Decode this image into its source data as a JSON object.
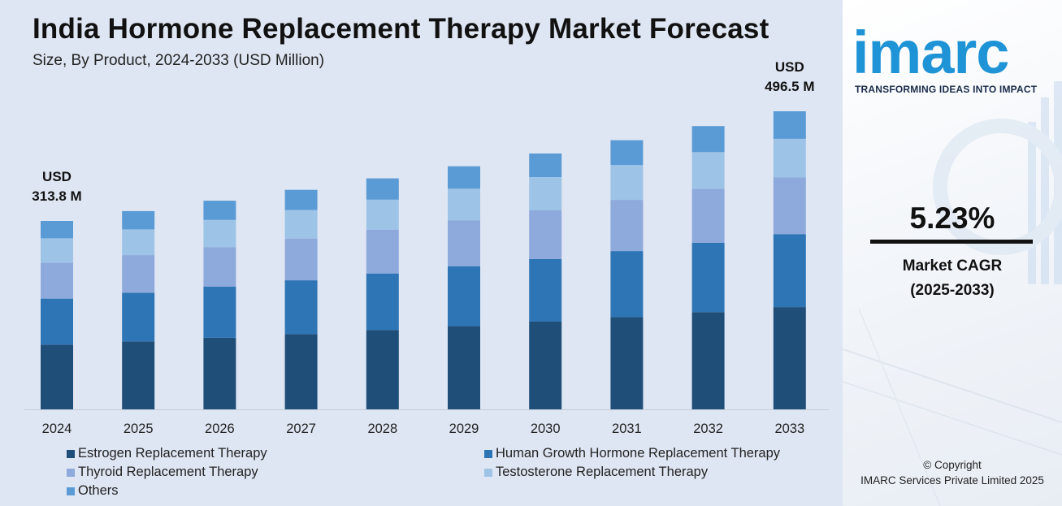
{
  "colors": {
    "estrogen": "#1f4e79",
    "human_growth": "#2e75b6",
    "thyroid": "#8ea9db",
    "testosterone": "#9dc3e6",
    "others": "#5b9bd5",
    "panel_bg": "#dfe6f3",
    "brand": "#1e93d6"
  },
  "chart_data": {
    "type": "bar",
    "stacked": true,
    "title": "India Hormone Replacement Therapy Market Forecast",
    "subtitle": "Size, By Product, 2024-2033 (USD Million)",
    "categories": [
      "2024",
      "2025",
      "2026",
      "2027",
      "2028",
      "2029",
      "2030",
      "2031",
      "2032",
      "2033"
    ],
    "totals": [
      313.8,
      330.2,
      347.5,
      365.7,
      384.8,
      404.9,
      426.1,
      448.4,
      471.9,
      496.5
    ],
    "series": [
      {
        "name": "Estrogen Replacement Therapy",
        "color_key": "estrogen",
        "values": [
          107.6,
          113.3,
          119.2,
          125.4,
          132.0,
          138.9,
          146.1,
          153.8,
          161.9,
          170.3
        ]
      },
      {
        "name": "Human Growth Hormone Replacement Therapy",
        "color_key": "human_growth",
        "values": [
          76.9,
          80.9,
          85.1,
          89.6,
          94.3,
          99.2,
          104.4,
          109.9,
          115.6,
          121.6
        ]
      },
      {
        "name": "Thyroid Replacement Therapy",
        "color_key": "thyroid",
        "values": [
          59.6,
          62.7,
          66.0,
          69.5,
          73.1,
          76.9,
          81.0,
          85.2,
          89.7,
          94.3
        ]
      },
      {
        "name": "Testosterone Replacement Therapy",
        "color_key": "testosterone",
        "values": [
          40.8,
          42.9,
          45.2,
          47.5,
          50.0,
          52.6,
          55.4,
          58.3,
          61.3,
          64.5
        ]
      },
      {
        "name": "Others",
        "color_key": "others",
        "values": [
          28.9,
          30.4,
          32.0,
          33.7,
          35.4,
          37.3,
          39.2,
          41.2,
          43.4,
          45.8
        ]
      }
    ],
    "annotations": [
      {
        "category": "2024",
        "line1": "USD",
        "line2": "313.8 M"
      },
      {
        "category": "2033",
        "line1": "USD",
        "line2": "496.5 M"
      }
    ],
    "ylim": [
      0,
      496.5
    ],
    "legend_position": "bottom",
    "grid": false
  },
  "brand": {
    "logo_text": "imarc",
    "tagline": "TRANSFORMING IDEAS INTO IMPACT"
  },
  "cagr": {
    "value": "5.23%",
    "label": "Market CAGR",
    "period": "(2025-2033)"
  },
  "footer": {
    "copyright": "© Copyright",
    "company": "IMARC Services Private Limited 2025"
  }
}
